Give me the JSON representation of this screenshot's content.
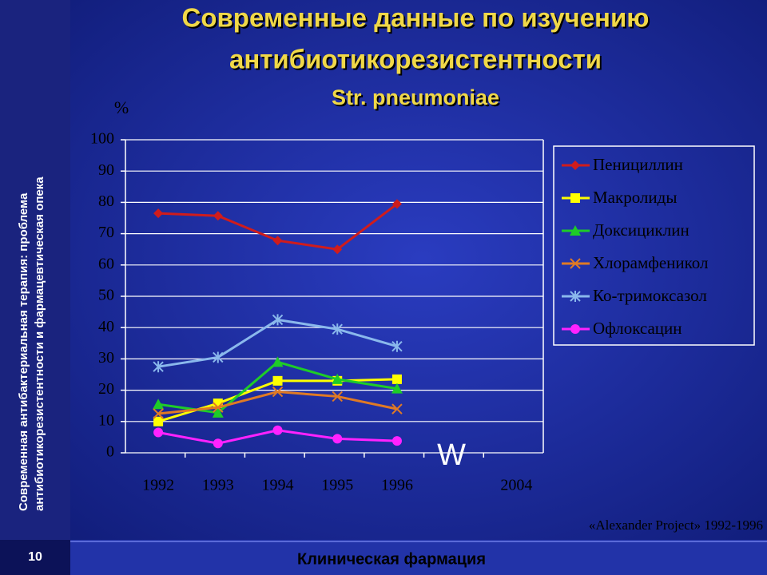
{
  "sidebar": [
    "Современная антибактериальная терапия: проблема",
    "антибиотикорезистентности и фармацевтическая опека"
  ],
  "page_number": "10",
  "footer": "Клиническая фармация",
  "chart_data": {
    "type": "line",
    "title": [
      "Современные данные по изучению",
      "антибиотикорезистентности"
    ],
    "subtitle": "Str. pneumoniae",
    "y_label": "%",
    "annotation": "W",
    "source": "«Alexander Project» 1992-1996",
    "categories": [
      "1992",
      "1993",
      "1994",
      "1995",
      "1996",
      null,
      "2004"
    ],
    "ylim": [
      0,
      100
    ],
    "yticks": [
      0,
      10,
      20,
      30,
      40,
      50,
      60,
      70,
      80,
      90,
      100
    ],
    "grid": true,
    "legend": "right",
    "series": [
      {
        "name": "Пенициллин",
        "color": "#d01c1c",
        "marker": "diamond",
        "values": [
          76.5,
          75.7,
          67.8,
          65,
          79.5,
          null,
          null
        ]
      },
      {
        "name": "Макролиды",
        "color": "#ffff00",
        "marker": "square",
        "values": [
          10,
          15.8,
          23,
          23,
          23.5,
          null,
          null
        ]
      },
      {
        "name": "Доксициклин",
        "color": "#1ecc28",
        "marker": "triangle",
        "values": [
          15.5,
          12.8,
          29,
          23.5,
          20.5,
          null,
          null
        ]
      },
      {
        "name": "Хлорамфеникол",
        "color": "#e07a24",
        "marker": "cross",
        "values": [
          12.5,
          14.5,
          19.5,
          18,
          14,
          null,
          null
        ]
      },
      {
        "name": "Ко-тримоксазол",
        "color": "#8ab8ec",
        "marker": "star",
        "values": [
          27.5,
          30.5,
          42.5,
          39.5,
          34,
          null,
          null
        ]
      },
      {
        "name": "Офлоксацин",
        "color": "#ff22ff",
        "marker": "circle",
        "values": [
          6.5,
          3,
          7.2,
          4.5,
          3.8,
          null,
          null
        ]
      }
    ]
  }
}
